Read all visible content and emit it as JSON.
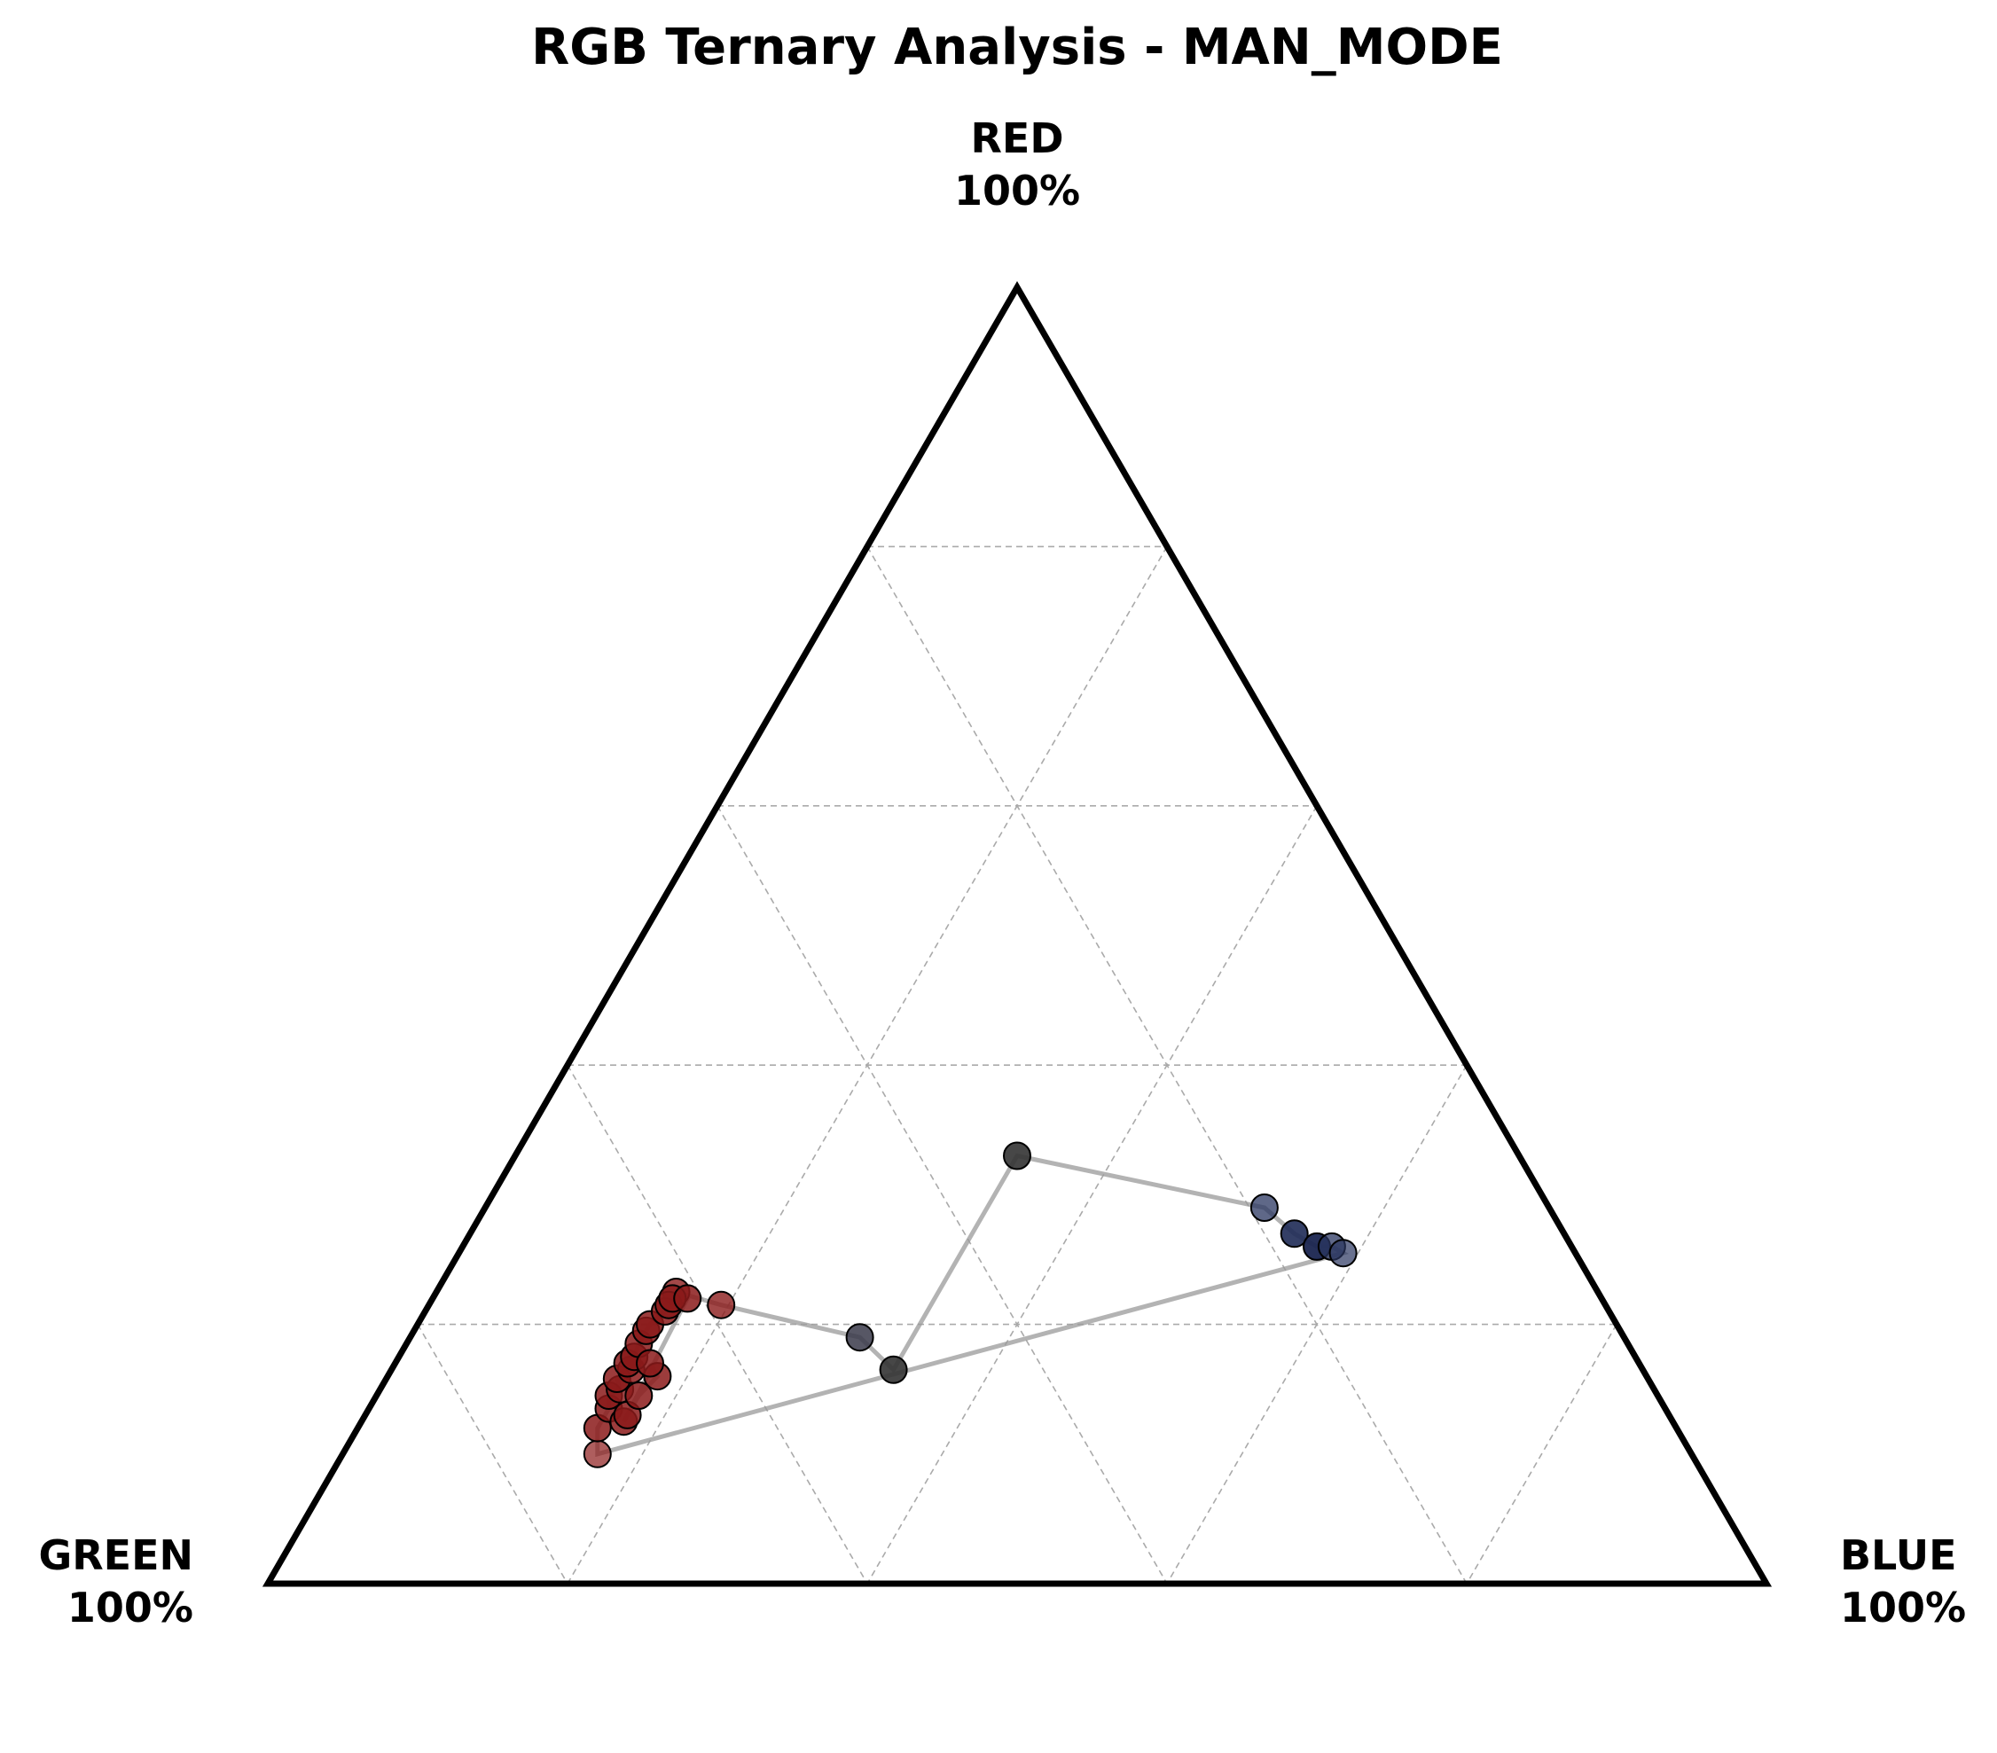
{
  "chart_data": {
    "type": "scatter",
    "subtype": "ternary",
    "title": "RGB Ternary Analysis - MAN_MODE",
    "vertices": {
      "top": {
        "name": "RED",
        "label": "100%"
      },
      "left": {
        "name": "GREEN",
        "label": "100%"
      },
      "right": {
        "name": "BLUE",
        "label": "100%"
      }
    },
    "grid": true,
    "grid_step": 0.2,
    "trajectory_line": true,
    "points": [
      {
        "r": 0.225,
        "g": 0.615,
        "b": 0.16,
        "color": "#8b1a1a",
        "opacity": 0.8
      },
      {
        "r": 0.215,
        "g": 0.59,
        "b": 0.195,
        "color": "#8b1a1a",
        "opacity": 0.8
      },
      {
        "r": 0.19,
        "g": 0.51,
        "b": 0.3,
        "color": "#3a3a4a",
        "opacity": 0.85
      },
      {
        "r": 0.165,
        "g": 0.5,
        "b": 0.335,
        "color": "#333333",
        "opacity": 0.9
      },
      {
        "r": 0.33,
        "g": 0.335,
        "b": 0.335,
        "color": "#333333",
        "opacity": 0.9
      },
      {
        "r": 0.29,
        "g": 0.19,
        "b": 0.52,
        "color": "#2a3560",
        "opacity": 0.75
      },
      {
        "r": 0.27,
        "g": 0.18,
        "b": 0.55,
        "color": "#1e2a55",
        "opacity": 0.9
      },
      {
        "r": 0.26,
        "g": 0.17,
        "b": 0.57,
        "color": "#1a2550",
        "opacity": 0.95
      },
      {
        "r": 0.26,
        "g": 0.16,
        "b": 0.58,
        "color": "#2a3560",
        "opacity": 0.75
      },
      {
        "r": 0.255,
        "g": 0.155,
        "b": 0.59,
        "color": "#2a3560",
        "opacity": 0.7
      },
      {
        "r": 0.1,
        "g": 0.73,
        "b": 0.17,
        "color": "#8b1a1a",
        "opacity": 0.7
      },
      {
        "r": 0.12,
        "g": 0.72,
        "b": 0.16,
        "color": "#8b1a1a",
        "opacity": 0.85
      },
      {
        "r": 0.135,
        "g": 0.705,
        "b": 0.16,
        "color": "#8b1a1a",
        "opacity": 0.85
      },
      {
        "r": 0.145,
        "g": 0.7,
        "b": 0.155,
        "color": "#8b1a1a",
        "opacity": 0.85
      },
      {
        "r": 0.15,
        "g": 0.69,
        "b": 0.16,
        "color": "#8b1a1a",
        "opacity": 0.8
      },
      {
        "r": 0.158,
        "g": 0.688,
        "b": 0.154,
        "color": "#8b1a1a",
        "opacity": 0.85
      },
      {
        "r": 0.165,
        "g": 0.675,
        "b": 0.16,
        "color": "#8b1a1a",
        "opacity": 0.85
      },
      {
        "r": 0.17,
        "g": 0.675,
        "b": 0.155,
        "color": "#8b1a1a",
        "opacity": 0.85
      },
      {
        "r": 0.175,
        "g": 0.668,
        "b": 0.157,
        "color": "#8b1a1a",
        "opacity": 0.85
      },
      {
        "r": 0.185,
        "g": 0.66,
        "b": 0.155,
        "color": "#8b1a1a",
        "opacity": 0.85
      },
      {
        "r": 0.195,
        "g": 0.65,
        "b": 0.155,
        "color": "#8b1a1a",
        "opacity": 0.85
      },
      {
        "r": 0.2,
        "g": 0.645,
        "b": 0.155,
        "color": "#8b1a1a",
        "opacity": 0.85
      },
      {
        "r": 0.21,
        "g": 0.63,
        "b": 0.16,
        "color": "#8b1a1a",
        "opacity": 0.85
      },
      {
        "r": 0.215,
        "g": 0.625,
        "b": 0.16,
        "color": "#8b1a1a",
        "opacity": 0.85
      },
      {
        "r": 0.22,
        "g": 0.62,
        "b": 0.16,
        "color": "#8b1a1a",
        "opacity": 0.85
      },
      {
        "r": 0.22,
        "g": 0.61,
        "b": 0.17,
        "color": "#8b1a1a",
        "opacity": 0.85
      },
      {
        "r": 0.125,
        "g": 0.7,
        "b": 0.175,
        "color": "#8b1a1a",
        "opacity": 0.85
      },
      {
        "r": 0.13,
        "g": 0.695,
        "b": 0.175,
        "color": "#8b1a1a",
        "opacity": 0.85
      },
      {
        "r": 0.145,
        "g": 0.68,
        "b": 0.175,
        "color": "#8b1a1a",
        "opacity": 0.85
      },
      {
        "r": 0.16,
        "g": 0.66,
        "b": 0.18,
        "color": "#8b1a1a",
        "opacity": 0.85
      },
      {
        "r": 0.17,
        "g": 0.66,
        "b": 0.17,
        "color": "#8b1a1a",
        "opacity": 0.85
      }
    ],
    "colors": {
      "outline": "#000000",
      "grid": "#aaaaaa",
      "trajectory": "#999999"
    }
  }
}
